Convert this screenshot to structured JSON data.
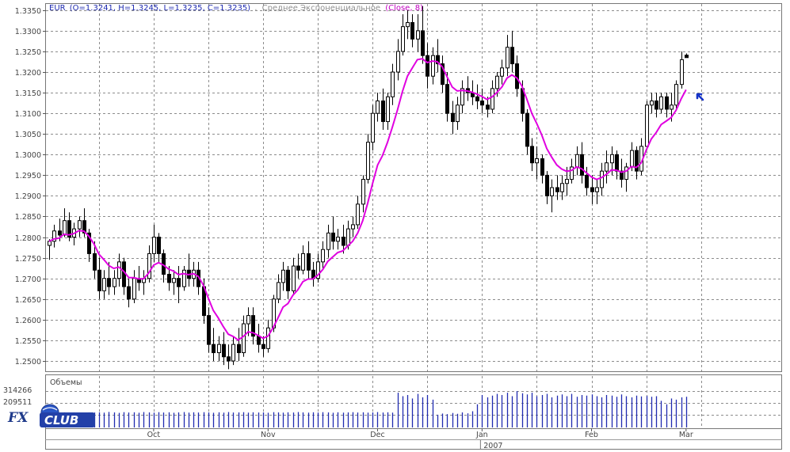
{
  "legend": {
    "symbol": "EUR",
    "ohlc": "(O=1.3241, H=1.3245, L=1.3235, C=1.3235)",
    "ma_name": "Среднее Экспоненциальное",
    "ma_params": "(Close, 8)"
  },
  "volume_panel": {
    "title": "Объемы",
    "max_label": "314266",
    "second_label": "209511"
  },
  "logo": {
    "fx": "FX",
    "club": "CLUB"
  },
  "colors": {
    "up_body": "#ffffff",
    "down_body": "#000000",
    "candle_outline": "#000000",
    "ma_line": "#e000e0",
    "volume_bars": "#1f2bb0",
    "legend_symbol": "#1f2bb0",
    "legend_ma": "#c000c0",
    "legend_text": "#909090",
    "arrow": "#1533c8",
    "grid": "#8c8c8c"
  },
  "chart_data": {
    "type": "candlestick",
    "title": "EUR",
    "y_ticks": [
      "1.2500",
      "1.2550",
      "1.2600",
      "1.2650",
      "1.2700",
      "1.2750",
      "1.2800",
      "1.2850",
      "1.2900",
      "1.2950",
      "1.3000",
      "1.3050",
      "1.3100",
      "1.3150",
      "1.3200",
      "1.3250",
      "1.3300",
      "1.3350"
    ],
    "ylim": [
      1.2475,
      1.3365
    ],
    "x_labels": [
      {
        "label": "Oct",
        "index": 21
      },
      {
        "label": "Nov",
        "index": 44
      },
      {
        "label": "Dec",
        "index": 66
      },
      {
        "label": "Jan",
        "index": 87
      },
      {
        "label": "Feb",
        "index": 109
      },
      {
        "label": "Mar",
        "index": 128
      }
    ],
    "x_label_year": {
      "label": "2007",
      "index": 87
    },
    "grid": true,
    "legend_position": "top-left",
    "series": [
      {
        "name": "EUR",
        "kind": "ohlc",
        "ohlc": [
          [
            1.278,
            1.2795,
            1.2745,
            1.279
          ],
          [
            1.279,
            1.283,
            1.2775,
            1.2815
          ],
          [
            1.2815,
            1.2845,
            1.279,
            1.2805
          ],
          [
            1.2805,
            1.287,
            1.28,
            1.284
          ],
          [
            1.284,
            1.286,
            1.279,
            1.28
          ],
          [
            1.28,
            1.2835,
            1.278,
            1.282
          ],
          [
            1.282,
            1.285,
            1.28,
            1.284
          ],
          [
            1.284,
            1.287,
            1.28,
            1.281
          ],
          [
            1.281,
            1.282,
            1.274,
            1.276
          ],
          [
            1.276,
            1.279,
            1.27,
            1.272
          ],
          [
            1.272,
            1.275,
            1.265,
            1.267
          ],
          [
            1.267,
            1.272,
            1.265,
            1.27
          ],
          [
            1.27,
            1.274,
            1.266,
            1.268
          ],
          [
            1.268,
            1.272,
            1.266,
            1.27
          ],
          [
            1.27,
            1.276,
            1.268,
            1.274
          ],
          [
            1.274,
            1.275,
            1.266,
            1.268
          ],
          [
            1.268,
            1.27,
            1.263,
            1.265
          ],
          [
            1.265,
            1.272,
            1.264,
            1.27
          ],
          [
            1.27,
            1.273,
            1.267,
            1.269
          ],
          [
            1.269,
            1.272,
            1.266,
            1.27
          ],
          [
            1.27,
            1.278,
            1.269,
            1.276
          ],
          [
            1.276,
            1.283,
            1.274,
            1.28
          ],
          [
            1.28,
            1.281,
            1.274,
            1.276
          ],
          [
            1.276,
            1.277,
            1.269,
            1.271
          ],
          [
            1.271,
            1.273,
            1.267,
            1.269
          ],
          [
            1.269,
            1.272,
            1.266,
            1.27
          ],
          [
            1.27,
            1.273,
            1.264,
            1.268
          ],
          [
            1.268,
            1.273,
            1.267,
            1.272
          ],
          [
            1.272,
            1.276,
            1.268,
            1.27
          ],
          [
            1.27,
            1.274,
            1.268,
            1.272
          ],
          [
            1.272,
            1.274,
            1.266,
            1.268
          ],
          [
            1.268,
            1.27,
            1.259,
            1.261
          ],
          [
            1.261,
            1.263,
            1.252,
            1.254
          ],
          [
            1.254,
            1.258,
            1.25,
            1.252
          ],
          [
            1.252,
            1.256,
            1.25,
            1.254
          ],
          [
            1.254,
            1.257,
            1.249,
            1.251
          ],
          [
            1.251,
            1.254,
            1.248,
            1.25
          ],
          [
            1.25,
            1.256,
            1.249,
            1.254
          ],
          [
            1.254,
            1.258,
            1.25,
            1.252
          ],
          [
            1.252,
            1.261,
            1.251,
            1.259
          ],
          [
            1.259,
            1.263,
            1.256,
            1.261
          ],
          [
            1.261,
            1.263,
            1.254,
            1.256
          ],
          [
            1.256,
            1.259,
            1.252,
            1.254
          ],
          [
            1.254,
            1.256,
            1.251,
            1.253
          ],
          [
            1.253,
            1.26,
            1.252,
            1.258
          ],
          [
            1.258,
            1.266,
            1.257,
            1.265
          ],
          [
            1.265,
            1.271,
            1.264,
            1.269
          ],
          [
            1.269,
            1.274,
            1.267,
            1.272
          ],
          [
            1.272,
            1.273,
            1.265,
            1.267
          ],
          [
            1.267,
            1.275,
            1.266,
            1.273
          ],
          [
            1.273,
            1.276,
            1.27,
            1.272
          ],
          [
            1.272,
            1.278,
            1.271,
            1.276
          ],
          [
            1.276,
            1.279,
            1.27,
            1.272
          ],
          [
            1.272,
            1.274,
            1.268,
            1.27
          ],
          [
            1.27,
            1.276,
            1.269,
            1.274
          ],
          [
            1.274,
            1.279,
            1.272,
            1.277
          ],
          [
            1.277,
            1.283,
            1.275,
            1.281
          ],
          [
            1.281,
            1.285,
            1.277,
            1.279
          ],
          [
            1.279,
            1.282,
            1.277,
            1.28
          ],
          [
            1.28,
            1.283,
            1.276,
            1.278
          ],
          [
            1.278,
            1.284,
            1.277,
            1.282
          ],
          [
            1.282,
            1.285,
            1.28,
            1.283
          ],
          [
            1.283,
            1.29,
            1.282,
            1.288
          ],
          [
            1.288,
            1.295,
            1.286,
            1.294
          ],
          [
            1.294,
            1.305,
            1.293,
            1.303
          ],
          [
            1.303,
            1.312,
            1.301,
            1.31
          ],
          [
            1.31,
            1.315,
            1.308,
            1.313
          ],
          [
            1.313,
            1.316,
            1.306,
            1.308
          ],
          [
            1.308,
            1.315,
            1.306,
            1.314
          ],
          [
            1.314,
            1.322,
            1.312,
            1.32
          ],
          [
            1.32,
            1.328,
            1.318,
            1.325
          ],
          [
            1.325,
            1.334,
            1.324,
            1.331
          ],
          [
            1.331,
            1.335,
            1.328,
            1.332
          ],
          [
            1.332,
            1.334,
            1.326,
            1.328
          ],
          [
            1.328,
            1.334,
            1.325,
            1.33
          ],
          [
            1.33,
            1.336,
            1.322,
            1.324
          ],
          [
            1.324,
            1.327,
            1.316,
            1.319
          ],
          [
            1.319,
            1.326,
            1.317,
            1.324
          ],
          [
            1.324,
            1.328,
            1.32,
            1.322
          ],
          [
            1.322,
            1.324,
            1.315,
            1.317
          ],
          [
            1.317,
            1.32,
            1.308,
            1.31
          ],
          [
            1.31,
            1.313,
            1.305,
            1.308
          ],
          [
            1.308,
            1.314,
            1.306,
            1.312
          ],
          [
            1.312,
            1.318,
            1.31,
            1.316
          ],
          [
            1.316,
            1.319,
            1.313,
            1.315
          ],
          [
            1.315,
            1.318,
            1.312,
            1.314
          ],
          [
            1.314,
            1.317,
            1.311,
            1.313
          ],
          [
            1.313,
            1.316,
            1.31,
            1.312
          ],
          [
            1.312,
            1.314,
            1.309,
            1.311
          ],
          [
            1.311,
            1.318,
            1.31,
            1.316
          ],
          [
            1.316,
            1.32,
            1.314,
            1.319
          ],
          [
            1.319,
            1.323,
            1.317,
            1.321
          ],
          [
            1.321,
            1.329,
            1.319,
            1.326
          ],
          [
            1.326,
            1.33,
            1.32,
            1.322
          ],
          [
            1.322,
            1.324,
            1.314,
            1.316
          ],
          [
            1.316,
            1.318,
            1.308,
            1.31
          ],
          [
            1.31,
            1.311,
            1.3,
            1.302
          ],
          [
            1.302,
            1.304,
            1.296,
            1.298
          ],
          [
            1.298,
            1.302,
            1.294,
            1.299
          ],
          [
            1.299,
            1.3,
            1.293,
            1.295
          ],
          [
            1.295,
            1.296,
            1.288,
            1.29
          ],
          [
            1.29,
            1.294,
            1.286,
            1.292
          ],
          [
            1.292,
            1.295,
            1.289,
            1.291
          ],
          [
            1.291,
            1.295,
            1.289,
            1.293
          ],
          [
            1.293,
            1.297,
            1.29,
            1.294
          ],
          [
            1.294,
            1.299,
            1.293,
            1.297
          ],
          [
            1.297,
            1.302,
            1.295,
            1.3
          ],
          [
            1.3,
            1.303,
            1.293,
            1.295
          ],
          [
            1.295,
            1.297,
            1.29,
            1.292
          ],
          [
            1.292,
            1.295,
            1.288,
            1.291
          ],
          [
            1.291,
            1.294,
            1.288,
            1.292
          ],
          [
            1.292,
            1.298,
            1.29,
            1.296
          ],
          [
            1.296,
            1.301,
            1.293,
            1.298
          ],
          [
            1.298,
            1.302,
            1.295,
            1.3
          ],
          [
            1.3,
            1.301,
            1.294,
            1.296
          ],
          [
            1.296,
            1.299,
            1.292,
            1.294
          ],
          [
            1.294,
            1.298,
            1.291,
            1.297
          ],
          [
            1.297,
            1.303,
            1.296,
            1.301
          ],
          [
            1.301,
            1.302,
            1.294,
            1.296
          ],
          [
            1.296,
            1.304,
            1.295,
            1.302
          ],
          [
            1.302,
            1.313,
            1.301,
            1.312
          ],
          [
            1.312,
            1.315,
            1.31,
            1.313
          ],
          [
            1.313,
            1.315,
            1.309,
            1.311
          ],
          [
            1.311,
            1.315,
            1.31,
            1.314
          ],
          [
            1.314,
            1.315,
            1.309,
            1.311
          ],
          [
            1.311,
            1.315,
            1.308,
            1.312
          ],
          [
            1.312,
            1.318,
            1.311,
            1.317
          ],
          [
            1.317,
            1.325,
            1.316,
            1.323
          ],
          [
            1.3241,
            1.3245,
            1.3235,
            1.3235
          ]
        ]
      },
      {
        "name": "Среднее Экспоненциальное (Close, 8)",
        "kind": "ema",
        "period": 8
      }
    ],
    "volume": {
      "max": 314266,
      "values": [
        120000,
        130000,
        125000,
        135000,
        128000,
        132000,
        130000,
        127000,
        133000,
        129000,
        131000,
        128000,
        134000,
        130000,
        126000,
        132000,
        129000,
        131000,
        127000,
        133000,
        130000,
        128000,
        132000,
        129000,
        131000,
        127000,
        130000,
        133000,
        128000,
        131000,
        129000,
        132000,
        130000,
        127000,
        131000,
        128000,
        133000,
        129000,
        130000,
        132000,
        128000,
        131000,
        129000,
        130000,
        127000,
        132000,
        130000,
        128000,
        131000,
        129000,
        133000,
        130000,
        128000,
        131000,
        129000,
        132000,
        130000,
        127000,
        131000,
        128000,
        130000,
        132000,
        129000,
        131000,
        128000,
        130000,
        133000,
        129000,
        131000,
        128000,
        300000,
        270000,
        280000,
        250000,
        290000,
        260000,
        280000,
        240000,
        110000,
        120000,
        115000,
        125000,
        118000,
        130000,
        122000,
        140000,
        200000,
        280000,
        260000,
        275000,
        290000,
        280000,
        300000,
        270000,
        314266,
        295000,
        285000,
        300000,
        270000,
        280000,
        290000,
        260000,
        275000,
        285000,
        270000,
        290000,
        265000,
        280000,
        275000,
        285000,
        270000,
        260000,
        280000,
        275000,
        265000,
        285000,
        270000,
        260000,
        275000,
        268000,
        272000,
        265000,
        270000,
        230000,
        200000,
        250000,
        240000,
        260000,
        265000
      ]
    }
  }
}
